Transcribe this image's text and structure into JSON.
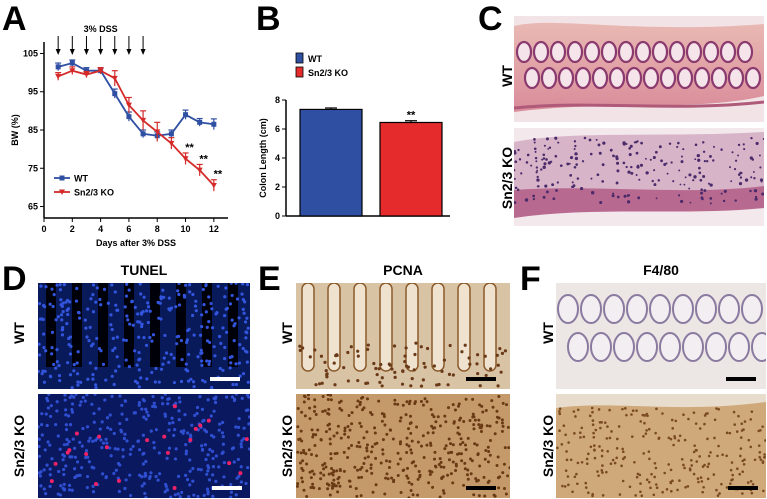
{
  "panels": {
    "a": "A",
    "b": "B",
    "c": "C",
    "d": "D",
    "e": "E",
    "f": "F"
  },
  "chart_data": [
    {
      "type": "line",
      "panel": "A",
      "title": "",
      "annotation": "3% DSS",
      "dss_arrows_days": [
        1,
        2,
        3,
        4,
        5,
        6,
        7
      ],
      "xlabel": "Days after 3% DSS",
      "ylabel": "BW (%)",
      "xlim": [
        0,
        13
      ],
      "ylim": [
        62,
        108
      ],
      "xticks": [
        0,
        2,
        4,
        6,
        8,
        10,
        12
      ],
      "yticks": [
        65,
        75,
        85,
        95,
        105
      ],
      "legend_position": "bottom-left",
      "x": [
        1,
        2,
        3,
        4,
        5,
        6,
        7,
        8,
        9,
        10,
        11,
        12
      ],
      "series": [
        {
          "name": "WT",
          "color": "#2f4fa3",
          "values": [
            101.5,
            102.5,
            100.5,
            100.5,
            94.5,
            88.5,
            84.0,
            83.5,
            84.0,
            89.0,
            87.0,
            86.5
          ],
          "errors": [
            1.0,
            0.8,
            0.8,
            0.8,
            1.2,
            1.2,
            1.0,
            1.0,
            1.0,
            1.2,
            1.0,
            1.4
          ]
        },
        {
          "name": "Sn2/3 KO",
          "color": "#d42a2a",
          "values": [
            99.0,
            100.5,
            99.5,
            100.5,
            98.5,
            91.5,
            87.5,
            84.5,
            81.5,
            77.5,
            74.5,
            70.5
          ],
          "errors": [
            1.0,
            1.0,
            0.8,
            0.8,
            2.0,
            2.0,
            2.5,
            2.5,
            1.5,
            1.5,
            1.5,
            1.5
          ]
        }
      ],
      "significance": [
        {
          "x": 10,
          "label": "**"
        },
        {
          "x": 11,
          "label": "**"
        },
        {
          "x": 12,
          "label": "**"
        }
      ]
    },
    {
      "type": "bar",
      "panel": "B",
      "title": "",
      "xlabel": "",
      "ylabel": "Colon Length (cm)",
      "ylim": [
        0,
        8
      ],
      "yticks": [
        0,
        2,
        4,
        6,
        8
      ],
      "legend_position": "top-left",
      "categories": [
        "WT",
        "Sn2/3 KO"
      ],
      "values": [
        7.35,
        6.45
      ],
      "errors": [
        0.1,
        0.12
      ],
      "colors": [
        "#2f4fa3",
        "#e52b2b"
      ],
      "significance": [
        {
          "category": "Sn2/3 KO",
          "label": "**"
        }
      ]
    }
  ],
  "panel_c": {
    "rows": [
      "WT",
      "Sn2/3 KO"
    ]
  },
  "panel_d": {
    "title": "TUNEL",
    "rows": [
      "WT",
      "Sn2/3 KO"
    ]
  },
  "panel_e": {
    "title": "PCNA",
    "rows": [
      "WT",
      "Sn2/3 KO"
    ]
  },
  "panel_f": {
    "title": "F4/80",
    "rows": [
      "WT",
      "Sn2/3 KO"
    ]
  }
}
